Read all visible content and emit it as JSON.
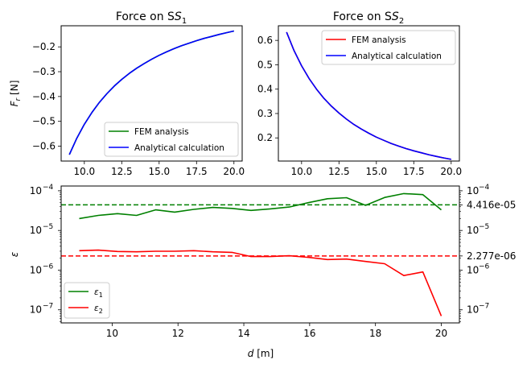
{
  "chart_data": [
    {
      "id": "s1",
      "type": "line",
      "title": "Force on S",
      "title_sub": "1",
      "ylabel": "F",
      "ylabel_sub": "r",
      "ylabel_unit": " [N]",
      "xlim": [
        8.45,
        20.55
      ],
      "ylim": [
        -0.66,
        -0.115
      ],
      "xticks": [
        10.0,
        12.5,
        15.0,
        17.5,
        20.0
      ],
      "xtick_labels": [
        "10.0",
        "12.5",
        "15.0",
        "17.5",
        "20.0"
      ],
      "yticks": [
        -0.6,
        -0.5,
        -0.4,
        -0.3,
        -0.2
      ],
      "ytick_labels": [
        "−0.6",
        "−0.5",
        "−0.4",
        "−0.3",
        "−0.2"
      ],
      "legend_position": "lower-right",
      "series": [
        {
          "name": "FEM analysis",
          "color": "#008000",
          "x": [
            9.0,
            9.5,
            10.0,
            10.5,
            11.0,
            11.5,
            12.0,
            12.5,
            13.0,
            13.5,
            14.0,
            14.5,
            15.0,
            15.5,
            16.0,
            16.5,
            17.0,
            17.5,
            18.0,
            18.5,
            19.0,
            19.5,
            20.0
          ],
          "y": [
            -0.634,
            -0.568,
            -0.512,
            -0.465,
            -0.424,
            -0.389,
            -0.358,
            -0.331,
            -0.307,
            -0.286,
            -0.267,
            -0.25,
            -0.234,
            -0.22,
            -0.207,
            -0.195,
            -0.185,
            -0.175,
            -0.166,
            -0.158,
            -0.15,
            -0.143,
            -0.136
          ]
        },
        {
          "name": "Analytical calculation",
          "color": "#0000ff",
          "x": [
            9.0,
            9.5,
            10.0,
            10.5,
            11.0,
            11.5,
            12.0,
            12.5,
            13.0,
            13.5,
            14.0,
            14.5,
            15.0,
            15.5,
            16.0,
            16.5,
            17.0,
            17.5,
            18.0,
            18.5,
            19.0,
            19.5,
            20.0
          ],
          "y": [
            -0.634,
            -0.568,
            -0.512,
            -0.465,
            -0.424,
            -0.389,
            -0.358,
            -0.331,
            -0.307,
            -0.286,
            -0.267,
            -0.25,
            -0.234,
            -0.22,
            -0.207,
            -0.195,
            -0.185,
            -0.175,
            -0.166,
            -0.158,
            -0.15,
            -0.143,
            -0.136
          ]
        }
      ]
    },
    {
      "id": "s2",
      "type": "line",
      "title": "Force on S",
      "title_sub": "2",
      "xlim": [
        8.45,
        20.55
      ],
      "ylim": [
        0.105,
        0.66
      ],
      "xticks": [
        10.0,
        12.5,
        15.0,
        17.5,
        20.0
      ],
      "xtick_labels": [
        "10.0",
        "12.5",
        "15.0",
        "17.5",
        "20.0"
      ],
      "yticks": [
        0.2,
        0.3,
        0.4,
        0.5,
        0.6
      ],
      "ytick_labels": [
        "0.2",
        "0.3",
        "0.4",
        "0.5",
        "0.6"
      ],
      "legend_position": "upper-right",
      "series": [
        {
          "name": "FEM analysis",
          "color": "#ff0000",
          "x": [
            9.0,
            9.5,
            10.0,
            10.5,
            11.0,
            11.5,
            12.0,
            12.5,
            13.0,
            13.5,
            14.0,
            14.5,
            15.0,
            15.5,
            16.0,
            16.5,
            17.0,
            17.5,
            18.0,
            18.5,
            19.0,
            19.5,
            20.0
          ],
          "y": [
            0.634,
            0.558,
            0.496,
            0.444,
            0.4,
            0.362,
            0.33,
            0.302,
            0.277,
            0.255,
            0.236,
            0.219,
            0.203,
            0.19,
            0.177,
            0.166,
            0.156,
            0.147,
            0.139,
            0.131,
            0.124,
            0.118,
            0.112
          ]
        },
        {
          "name": "Analytical calculation",
          "color": "#0000ff",
          "x": [
            9.0,
            9.5,
            10.0,
            10.5,
            11.0,
            11.5,
            12.0,
            12.5,
            13.0,
            13.5,
            14.0,
            14.5,
            15.0,
            15.5,
            16.0,
            16.5,
            17.0,
            17.5,
            18.0,
            18.5,
            19.0,
            19.5,
            20.0
          ],
          "y": [
            0.634,
            0.558,
            0.496,
            0.444,
            0.4,
            0.362,
            0.33,
            0.302,
            0.277,
            0.255,
            0.236,
            0.219,
            0.203,
            0.19,
            0.177,
            0.166,
            0.156,
            0.147,
            0.139,
            0.131,
            0.124,
            0.118,
            0.112
          ]
        }
      ]
    },
    {
      "id": "err",
      "type": "line",
      "yscale": "log",
      "xlabel": "d",
      "xlabel_unit": " [m]",
      "ylabel": "ε",
      "xlim": [
        8.45,
        20.55
      ],
      "ylim_log10": [
        -7.33,
        -3.88
      ],
      "xticks": [
        10,
        12,
        14,
        16,
        18,
        20
      ],
      "xtick_labels": [
        "10",
        "12",
        "14",
        "16",
        "18",
        "20"
      ],
      "yticks_log10": [
        -7,
        -6,
        -5,
        -4
      ],
      "ytick_bases": [
        "10",
        "10",
        "10",
        "10"
      ],
      "ytick_exps": [
        "−7",
        "−6",
        "−5",
        "−4"
      ],
      "right_ticks_log10": [
        -7,
        -6,
        -5,
        -4
      ],
      "legend_position": "lower-left",
      "series": [
        {
          "name": "ε",
          "sub": "1",
          "color": "#008000",
          "x": [
            9.0,
            9.58,
            10.16,
            10.74,
            11.32,
            11.9,
            12.48,
            13.06,
            13.64,
            14.22,
            14.8,
            15.38,
            15.96,
            16.54,
            17.12,
            17.7,
            18.28,
            18.86,
            19.44,
            20.0
          ],
          "y": [
            2e-05,
            2.4e-05,
            2.65e-05,
            2.4e-05,
            3.3e-05,
            2.9e-05,
            3.4e-05,
            3.8e-05,
            3.6e-05,
            3.2e-05,
            3.5e-05,
            3.9e-05,
            5e-05,
            6.3e-05,
            6.7e-05,
            4.3e-05,
            6.8e-05,
            8.5e-05,
            8e-05,
            3.3e-05
          ]
        },
        {
          "name": "ε",
          "sub": "2",
          "color": "#ff0000",
          "x": [
            9.0,
            9.58,
            10.16,
            10.74,
            11.32,
            11.9,
            12.48,
            13.06,
            13.64,
            14.22,
            14.8,
            15.38,
            15.96,
            16.54,
            17.12,
            17.7,
            18.28,
            18.86,
            19.44,
            20.0
          ],
          "y": [
            3.1e-06,
            3.2e-06,
            2.95e-06,
            2.9e-06,
            3e-06,
            3e-06,
            3.1e-06,
            2.9e-06,
            2.8e-06,
            2.2e-06,
            2.2e-06,
            2.3e-06,
            2.1e-06,
            1.85e-06,
            1.9e-06,
            1.65e-06,
            1.45e-06,
            7.3e-07,
            9e-07,
            7e-08
          ]
        }
      ],
      "hlines": [
        {
          "value": 4.416e-05,
          "label": "4.416e-05",
          "color": "#008000"
        },
        {
          "value": 2.277e-06,
          "label": "2.277e-06",
          "color": "#ff0000"
        }
      ]
    }
  ]
}
